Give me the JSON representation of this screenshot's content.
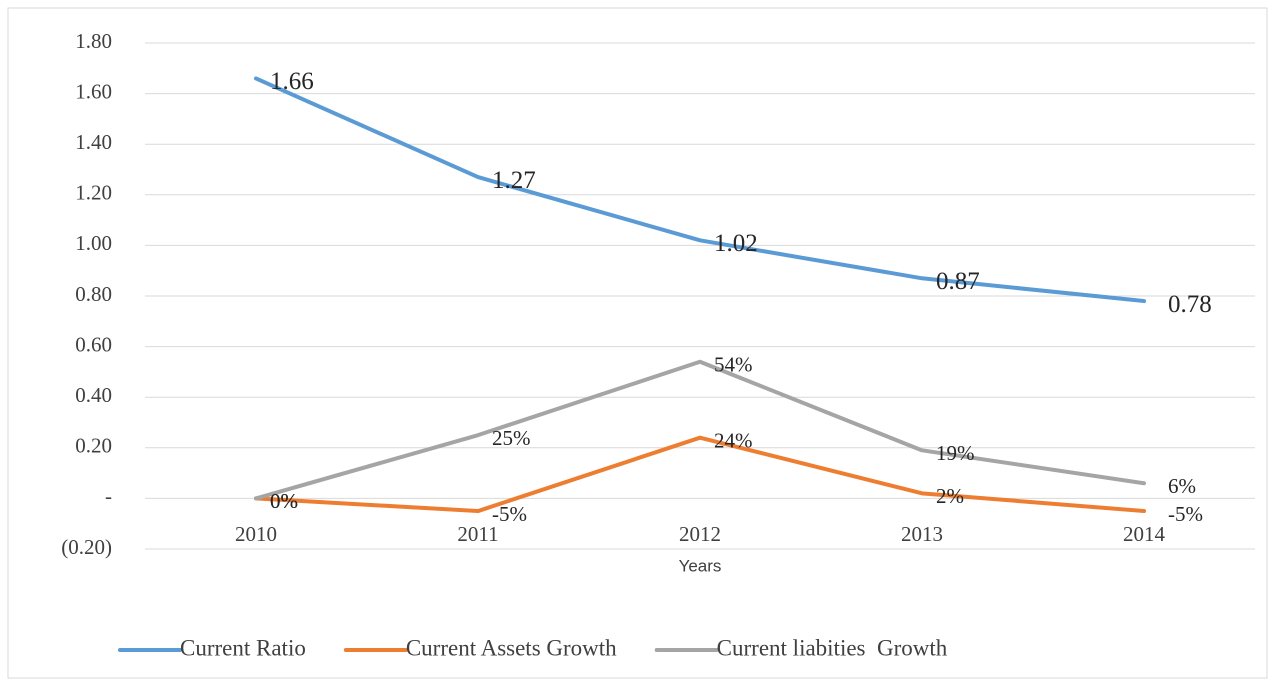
{
  "chart_data": {
    "type": "line",
    "x_label": "Years",
    "categories": [
      "2010",
      "2011",
      "2012",
      "2013",
      "2014"
    ],
    "series": [
      {
        "name": "Current Ratio",
        "color": "#5b9bd5",
        "values": [
          1.66,
          1.27,
          1.02,
          0.87,
          0.78
        ]
      },
      {
        "name": "Current Assets Growth",
        "color": "#ed7d31",
        "values": [
          0,
          -0.05,
          0.24,
          0.02,
          -0.05
        ],
        "value_labels": [
          "0%",
          "-5%",
          "24%",
          "2%",
          "-5%"
        ]
      },
      {
        "name": "Current liabities  Growth",
        "color": "#a5a5a5",
        "values": [
          0,
          0.25,
          0.54,
          0.19,
          0.06
        ],
        "value_labels": [
          "0%",
          "25%",
          "54%",
          "19%",
          "6%"
        ]
      }
    ],
    "ylim": [
      -0.2,
      1.8
    ],
    "yticks": [
      {
        "value": -0.2,
        "label": "(0.20)"
      },
      {
        "value": 0,
        "label": "-"
      },
      {
        "value": 0.2,
        "label": "0.20"
      },
      {
        "value": 0.4,
        "label": "0.40"
      },
      {
        "value": 0.6,
        "label": "0.60"
      },
      {
        "value": 0.8,
        "label": "0.80"
      },
      {
        "value": 1.0,
        "label": "1.00"
      },
      {
        "value": 1.2,
        "label": "1.20"
      },
      {
        "value": 1.4,
        "label": "1.40"
      },
      {
        "value": 1.6,
        "label": "1.60"
      },
      {
        "value": 1.8,
        "label": "1.80"
      }
    ],
    "grid": true,
    "legend": "bottom"
  }
}
